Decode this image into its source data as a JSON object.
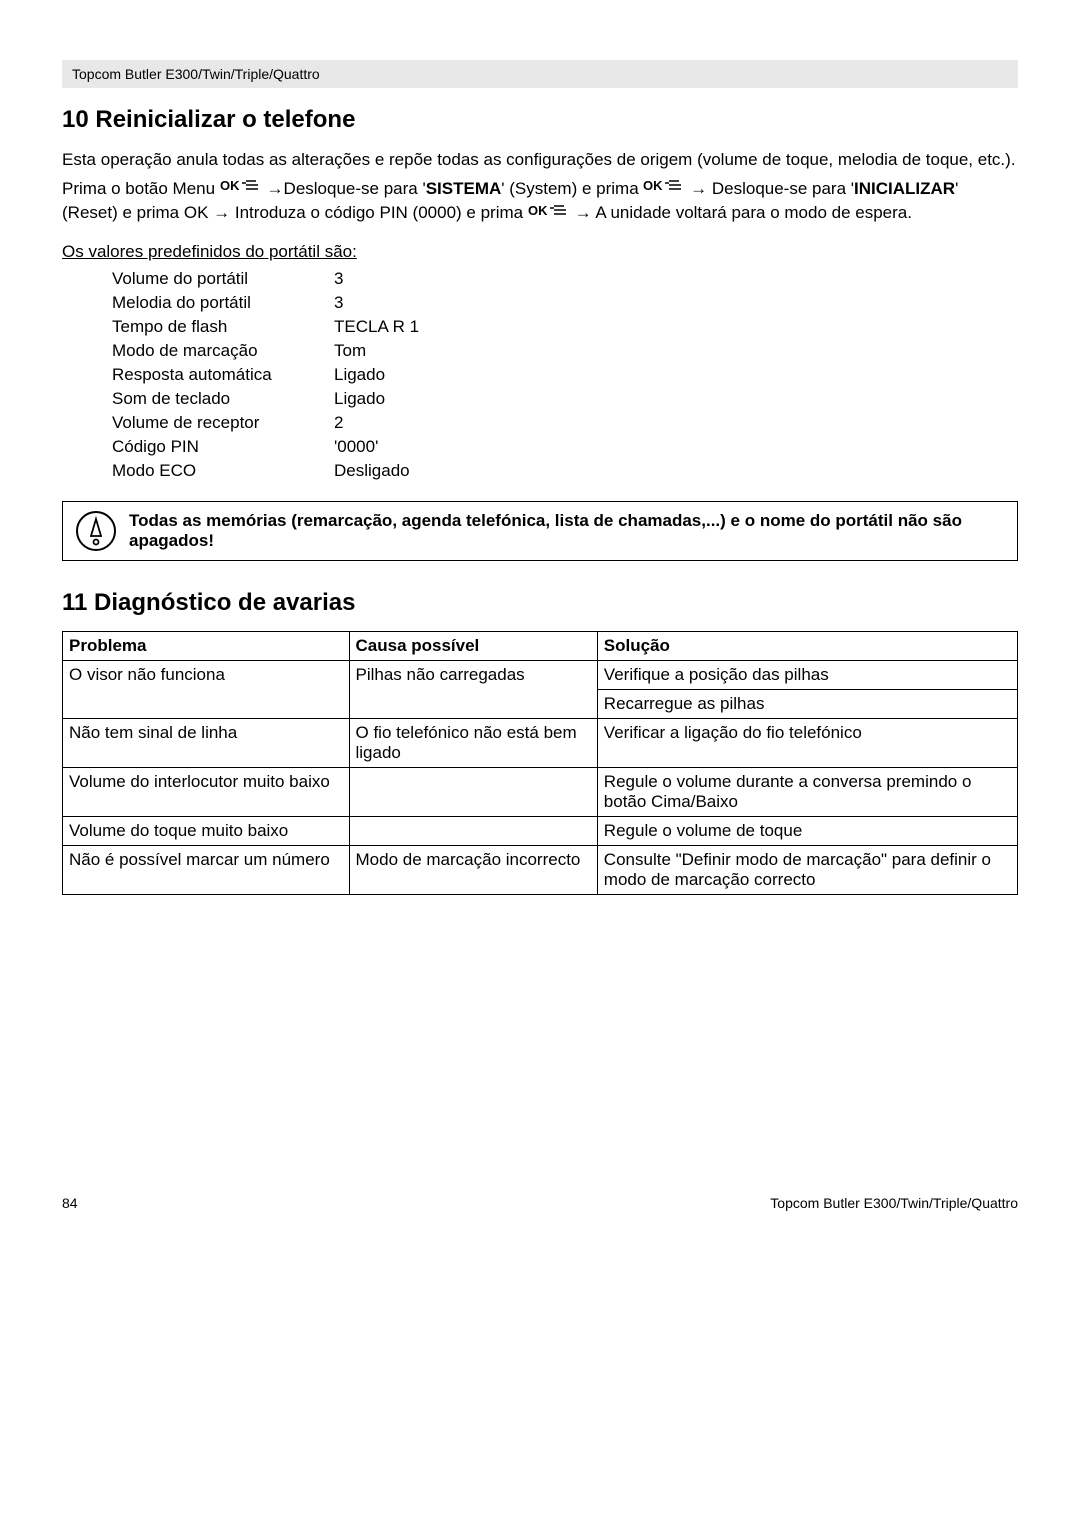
{
  "header": {
    "product": "Topcom Butler E300/Twin/Triple/Quattro"
  },
  "section10": {
    "title": "10  Reinicializar o telefone",
    "intro": "Esta operação anula todas as alterações e repõe todas as configurações de origem (volume de toque, melodia de toque, etc.).",
    "instr_pre": "Prima o botão Menu ",
    "instr_mid1": "Desloque-se para '",
    "instr_sistema": "SISTEMA",
    "instr_mid2": "' (System) e prima ",
    "instr_mid3": "Desloque-se para '",
    "instr_init": "INICIALIZAR",
    "instr_mid4": "' (Reset) e prima OK ",
    "instr_mid5": " Introduza o código PIN (0000) e prima ",
    "instr_end": " A unidade voltará para o modo de espera.",
    "defaults_heading": "Os valores predefinidos do portátil são:",
    "defaults": [
      {
        "k": "Volume do portátil",
        "v": "3"
      },
      {
        "k": "Melodia do portátil",
        "v": "3"
      },
      {
        "k": "Tempo de flash",
        "v": "TECLA R 1"
      },
      {
        "k": "Modo de marcação",
        "v": "Tom"
      },
      {
        "k": "Resposta automática",
        "v": "Ligado"
      },
      {
        "k": "Som de teclado",
        "v": "Ligado"
      },
      {
        "k": "Volume de receptor",
        "v": "2"
      },
      {
        "k": "Código PIN",
        "v": "'0000'"
      },
      {
        "k": "Modo ECO",
        "v": "Desligado"
      }
    ],
    "note": "Todas as memórias (remarcação, agenda telefónica, lista de chamadas,...) e o nome do portátil não são apagados!"
  },
  "section11": {
    "title": "11  Diagnóstico de avarias",
    "headers": {
      "problem": "Problema",
      "cause": "Causa possível",
      "solution": "Solução"
    },
    "rows": [
      {
        "problem": "O visor não funciona",
        "cause": "Pilhas não carregadas",
        "solution": "Verifique a posição das pilhas",
        "rowspan_problem": 2,
        "rowspan_cause": 2
      },
      {
        "solution": "Recarregue as pilhas"
      },
      {
        "problem": "Não tem sinal de linha",
        "cause": "O fio telefónico não está bem ligado",
        "solution": "Verificar a ligação do fio telefónico"
      },
      {
        "problem": "Volume do interlocutor muito baixo",
        "cause": "",
        "solution": "Regule o volume durante a conversa premindo o botão Cima/Baixo"
      },
      {
        "problem": "Volume do toque muito baixo",
        "cause": "",
        "solution": "Regule o volume de toque"
      },
      {
        "problem": "Não é possível marcar um número",
        "cause": "Modo de marcação incorrecto",
        "solution": "Consulte \"Definir modo de marcação\" para definir o modo de marcação correcto"
      }
    ]
  },
  "footer": {
    "page": "84",
    "product": "Topcom Butler E300/Twin/Triple/Quattro"
  }
}
